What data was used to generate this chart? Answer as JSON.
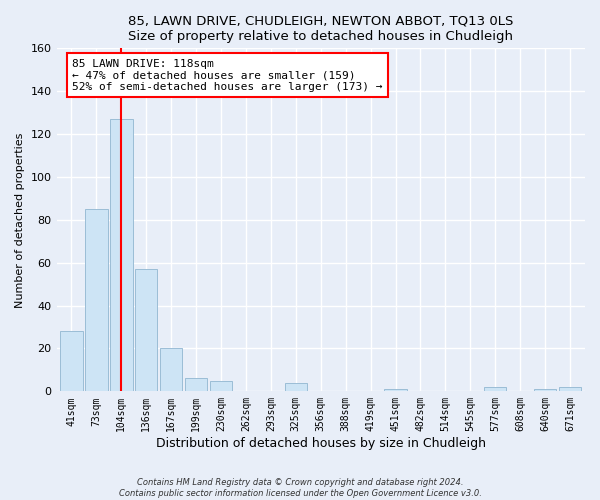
{
  "title1": "85, LAWN DRIVE, CHUDLEIGH, NEWTON ABBOT, TQ13 0LS",
  "title2": "Size of property relative to detached houses in Chudleigh",
  "xlabel": "Distribution of detached houses by size in Chudleigh",
  "ylabel": "Number of detached properties",
  "bar_labels": [
    "41sqm",
    "73sqm",
    "104sqm",
    "136sqm",
    "167sqm",
    "199sqm",
    "230sqm",
    "262sqm",
    "293sqm",
    "325sqm",
    "356sqm",
    "388sqm",
    "419sqm",
    "451sqm",
    "482sqm",
    "514sqm",
    "545sqm",
    "577sqm",
    "608sqm",
    "640sqm",
    "671sqm"
  ],
  "bar_values": [
    28,
    85,
    127,
    57,
    20,
    6,
    5,
    0,
    0,
    4,
    0,
    0,
    0,
    1,
    0,
    0,
    0,
    2,
    0,
    1,
    2
  ],
  "bar_color": "#cde4f5",
  "bar_edge_color": "#9bbdd6",
  "vline_index": 2,
  "vline_color": "red",
  "annotation_text": "85 LAWN DRIVE: 118sqm\n← 47% of detached houses are smaller (159)\n52% of semi-detached houses are larger (173) →",
  "annotation_box_color": "white",
  "annotation_box_edge_color": "red",
  "ylim": [
    0,
    160
  ],
  "yticks": [
    0,
    20,
    40,
    60,
    80,
    100,
    120,
    140,
    160
  ],
  "footnote1": "Contains HM Land Registry data © Crown copyright and database right 2024.",
  "footnote2": "Contains public sector information licensed under the Open Government Licence v3.0.",
  "bg_color": "#e8eef8",
  "grid_color": "white"
}
